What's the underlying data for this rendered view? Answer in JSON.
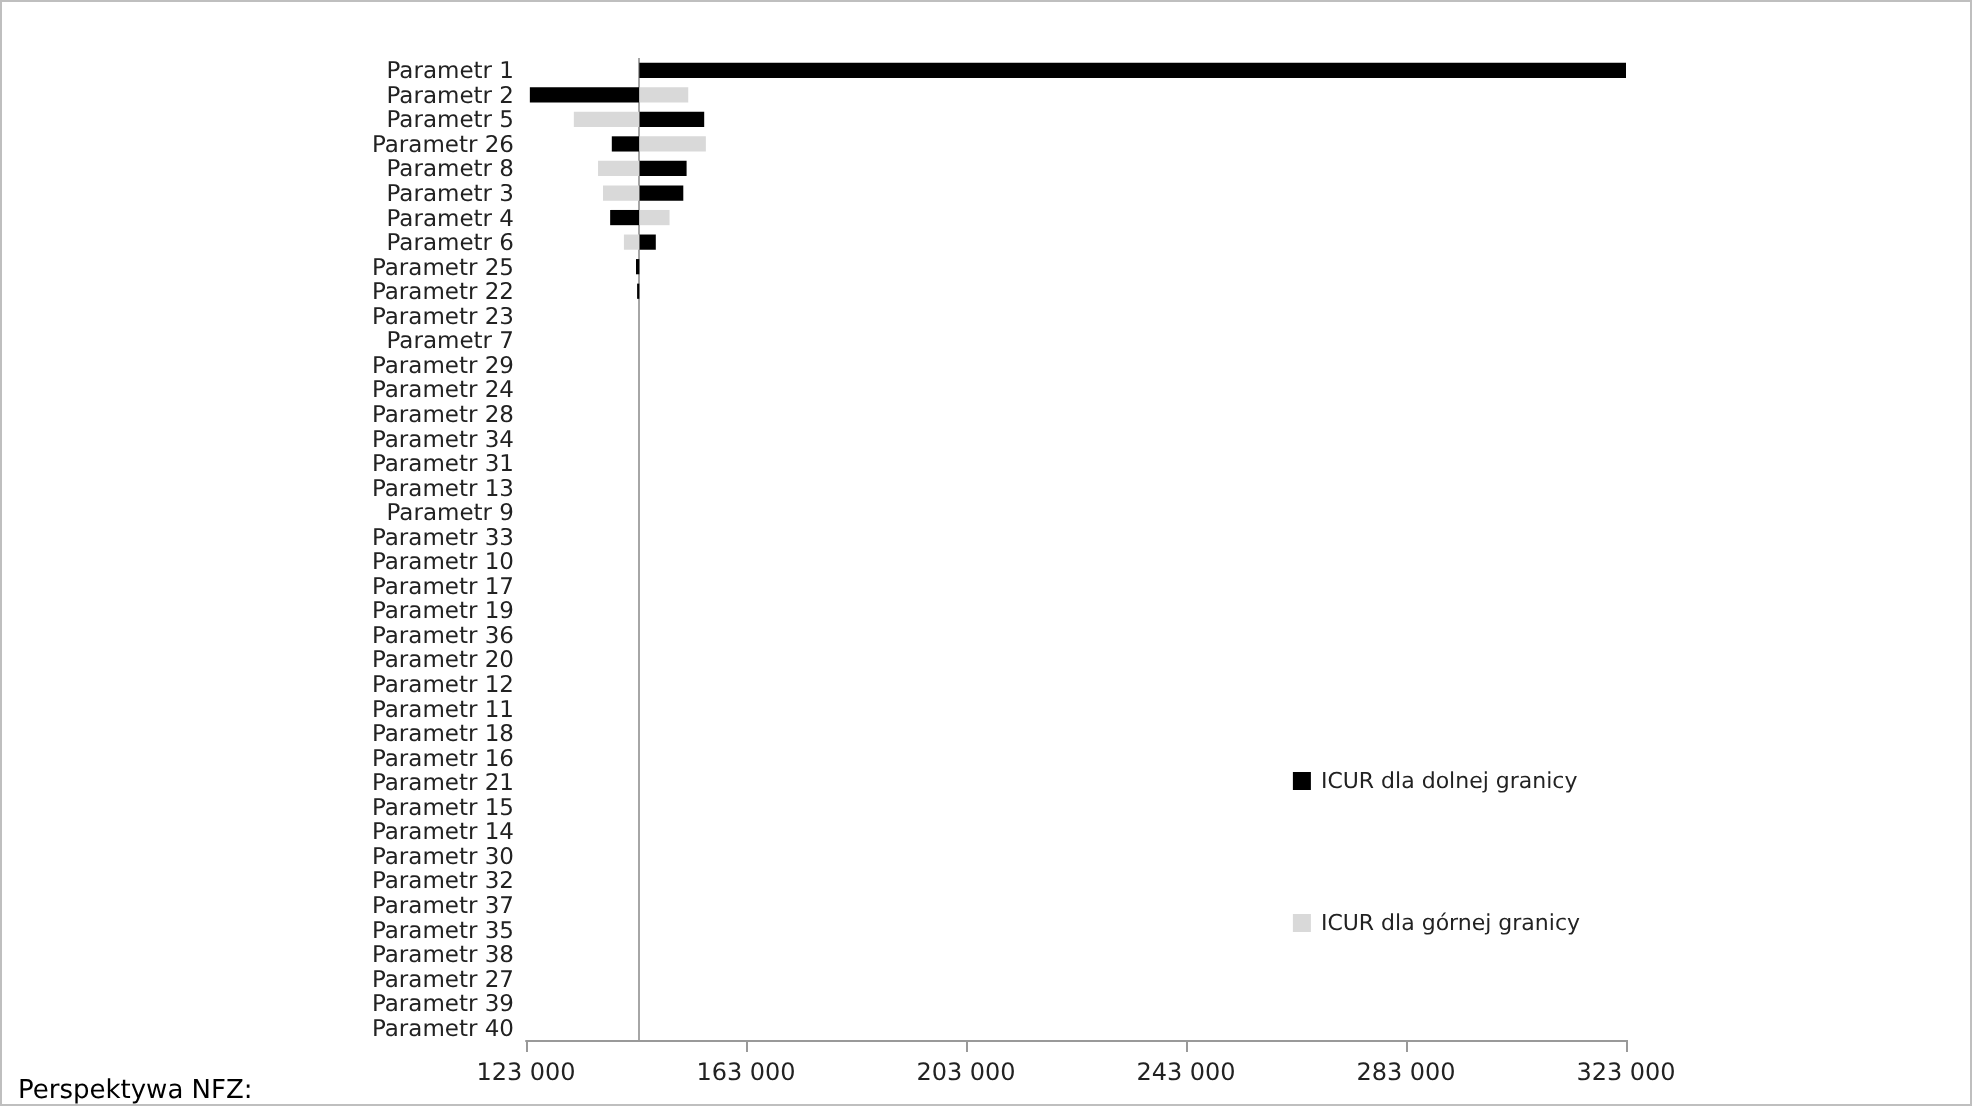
{
  "chart_data": {
    "type": "bar",
    "orientation": "horizontal",
    "categories": [
      "Parametr 1",
      "Parametr 2",
      "Parametr 5",
      "Parametr 26",
      "Parametr 8",
      "Parametr 3",
      "Parametr 4",
      "Parametr 6",
      "Parametr 25",
      "Parametr 22",
      "Parametr 23",
      "Parametr 7",
      "Parametr 29",
      "Parametr 24",
      "Parametr 28",
      "Parametr 34",
      "Parametr 31",
      "Parametr 13",
      "Parametr 9",
      "Parametr 33",
      "Parametr 10",
      "Parametr 17",
      "Parametr 19",
      "Parametr 36",
      "Parametr 20",
      "Parametr 12",
      "Parametr 11",
      "Parametr 18",
      "Parametr 16",
      "Parametr 21",
      "Parametr 15",
      "Parametr 14",
      "Parametr 30",
      "Parametr 32",
      "Parametr 37",
      "Parametr 35",
      "Parametr 38",
      "Parametr 27",
      "Parametr 39",
      "Parametr 40"
    ],
    "series": [
      {
        "name": "ICUR dla dolnej granicy",
        "color": "#000000",
        "base": [
          143600,
          143600,
          143600,
          143600,
          143600,
          143600,
          143600,
          143600,
          143600,
          143600,
          null,
          null,
          null,
          null,
          null,
          null,
          null,
          null,
          null,
          null,
          null,
          null,
          null,
          null,
          null,
          null,
          null,
          null,
          null,
          null,
          null,
          null,
          null,
          null,
          null,
          null,
          null,
          null,
          null,
          null
        ],
        "values": [
          179400,
          -19900,
          11800,
          -5000,
          8600,
          8000,
          -5300,
          3000,
          -600,
          -400,
          null,
          null,
          null,
          null,
          null,
          null,
          null,
          null,
          null,
          null,
          null,
          null,
          null,
          null,
          null,
          null,
          null,
          null,
          null,
          null,
          null,
          null,
          null,
          null,
          null,
          null,
          null,
          null,
          null,
          null
        ]
      },
      {
        "name": "ICUR dla górnej granicy",
        "color": "#d9d9d9",
        "base": [
          null,
          143600,
          143600,
          143600,
          143600,
          143600,
          143600,
          143600,
          null,
          null,
          null,
          null,
          null,
          null,
          null,
          null,
          null,
          null,
          null,
          null,
          null,
          null,
          null,
          null,
          null,
          null,
          null,
          null,
          null,
          null,
          null,
          null,
          null,
          null,
          null,
          null,
          null,
          null,
          null,
          null
        ],
        "values": [
          null,
          8900,
          -11900,
          12100,
          -7500,
          -6600,
          5500,
          -2800,
          null,
          null,
          null,
          null,
          null,
          null,
          null,
          null,
          null,
          null,
          null,
          null,
          null,
          null,
          null,
          null,
          null,
          null,
          null,
          null,
          null,
          null,
          null,
          null,
          null,
          null,
          null,
          null,
          null,
          null,
          null,
          null
        ]
      }
    ],
    "xlim": [
      123000,
      323000
    ],
    "xticks": [
      {
        "value": 123000,
        "label": "123 000"
      },
      {
        "value": 163000,
        "label": "163 000"
      },
      {
        "value": 203000,
        "label": "203 000"
      },
      {
        "value": 243000,
        "label": "243 000"
      },
      {
        "value": 283000,
        "label": "283 000"
      },
      {
        "value": 323000,
        "label": "323 000"
      }
    ],
    "ref_lines": [
      {
        "axis": "x",
        "value": 143600,
        "color": "#a6a6a6"
      }
    ],
    "legend": "bottom right",
    "grid": false,
    "annotations": [
      "Perspektywa NFZ:"
    ]
  }
}
